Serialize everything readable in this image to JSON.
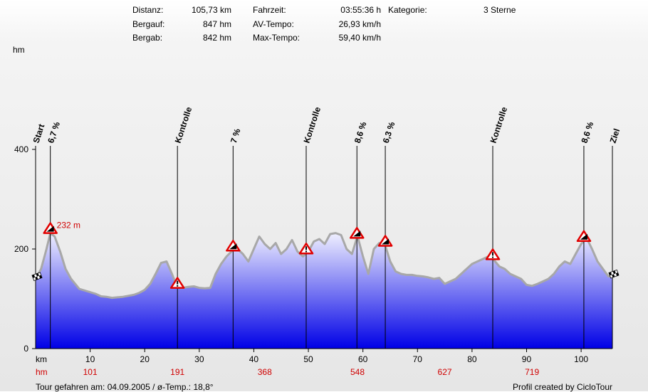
{
  "stats": {
    "distanz_label": "Distanz:",
    "distanz_value": "105,73 km",
    "bergauf_label": "Bergauf:",
    "bergauf_value": "847 hm",
    "bergab_label": "Bergab:",
    "bergab_value": "842 hm",
    "fahrzeit_label": "Fahrzeit:",
    "fahrzeit_value": "03:55:36 h",
    "avtempo_label": "AV-Tempo:",
    "avtempo_value": "26,93 km/h",
    "maxtempo_label": "Max-Tempo:",
    "maxtempo_value": "59,40 km/h",
    "kategorie_label": "Kategorie:",
    "kategorie_value": "3 Sterne"
  },
  "footer": {
    "left": "Tour gefahren am: 04.09.2005  /  ø-Temp.: 18,8°",
    "right": "Profil created by CicloTour"
  },
  "colors": {
    "area_top": "#f0f0ff",
    "area_bottom": "#0000e6",
    "outline": "#a8a8a8",
    "climb_label": "#d00000"
  },
  "chart_data": {
    "type": "area",
    "ylabel": "hm",
    "xlabel": "km",
    "xlim": [
      0,
      105.73
    ],
    "ylim": [
      0,
      400
    ],
    "y_ticks": [
      0,
      200,
      400
    ],
    "x_ticks": [
      10,
      20,
      30,
      40,
      50,
      60,
      70,
      80,
      90,
      100
    ],
    "x_tick_labels": [
      "10",
      "20",
      "30",
      "40",
      "50",
      "60",
      "70",
      "80",
      "90",
      "100"
    ],
    "cumulative_climb_label": "hm",
    "cumulative_climb": [
      {
        "km": 10,
        "value": "101"
      },
      {
        "km": 26,
        "value": "191"
      },
      {
        "km": 42,
        "value": "368"
      },
      {
        "km": 59,
        "value": "548"
      },
      {
        "km": 75,
        "value": "627"
      },
      {
        "km": 91,
        "value": "719"
      }
    ],
    "elevation": {
      "x": [
        0,
        1,
        2,
        2.7,
        3.5,
        4.5,
        5.5,
        6.5,
        8,
        9.5,
        11,
        12,
        13,
        14,
        15,
        16,
        17,
        18,
        19,
        20,
        21,
        22,
        23,
        24,
        25,
        26,
        27,
        28,
        29,
        30,
        31,
        32,
        33,
        34,
        35,
        36,
        37,
        38,
        39,
        40,
        41,
        42,
        43,
        44,
        45,
        46,
        47,
        48,
        49,
        50,
        51,
        52,
        53,
        54,
        55,
        56,
        57,
        58,
        59,
        60,
        61,
        62,
        63,
        64,
        65,
        66,
        67,
        68,
        69,
        70,
        71,
        72,
        73,
        74,
        75,
        76,
        77,
        78,
        79,
        80,
        81,
        82,
        83,
        84,
        85,
        86,
        87,
        88,
        89,
        90,
        91,
        92,
        93,
        94,
        95,
        96,
        97,
        98,
        99,
        100,
        101,
        102,
        103,
        104,
        105,
        105.73
      ],
      "y": [
        140,
        160,
        200,
        232,
        225,
        195,
        160,
        140,
        120,
        115,
        110,
        105,
        104,
        102,
        103,
        104,
        106,
        108,
        112,
        118,
        130,
        150,
        172,
        175,
        150,
        122,
        122,
        124,
        125,
        122,
        121,
        122,
        150,
        170,
        185,
        196,
        200,
        190,
        175,
        200,
        225,
        210,
        200,
        212,
        190,
        200,
        218,
        195,
        185,
        195,
        215,
        220,
        210,
        230,
        232,
        228,
        200,
        190,
        226,
        185,
        150,
        200,
        212,
        210,
        175,
        155,
        150,
        148,
        148,
        146,
        145,
        143,
        140,
        142,
        130,
        135,
        140,
        150,
        160,
        170,
        175,
        180,
        185,
        178,
        165,
        160,
        150,
        145,
        140,
        128,
        126,
        130,
        135,
        140,
        150,
        165,
        175,
        170,
        190,
        210,
        222,
        200,
        175,
        160,
        145,
        145
      ]
    },
    "waypoints": [
      {
        "km": 0,
        "label": "Start",
        "type": "flag"
      },
      {
        "km": 2.7,
        "label": "6,7 %",
        "type": "climb"
      },
      {
        "km": 26,
        "label": "Kontrolle",
        "type": "control"
      },
      {
        "km": 36.2,
        "label": "7 %",
        "type": "climb"
      },
      {
        "km": 49.6,
        "label": "Kontrolle",
        "type": "control"
      },
      {
        "km": 58.9,
        "label": "8,6 %",
        "type": "climb"
      },
      {
        "km": 64.1,
        "label": "6,3 %",
        "type": "climb"
      },
      {
        "km": 83.8,
        "label": "Kontrolle",
        "type": "control"
      },
      {
        "km": 100.5,
        "label": "8,6 %",
        "type": "climb"
      },
      {
        "km": 105.73,
        "label": "Ziel",
        "type": "flag"
      }
    ],
    "annotations": [
      {
        "km": 2.7,
        "hm": 232,
        "text": "232 m"
      }
    ]
  }
}
